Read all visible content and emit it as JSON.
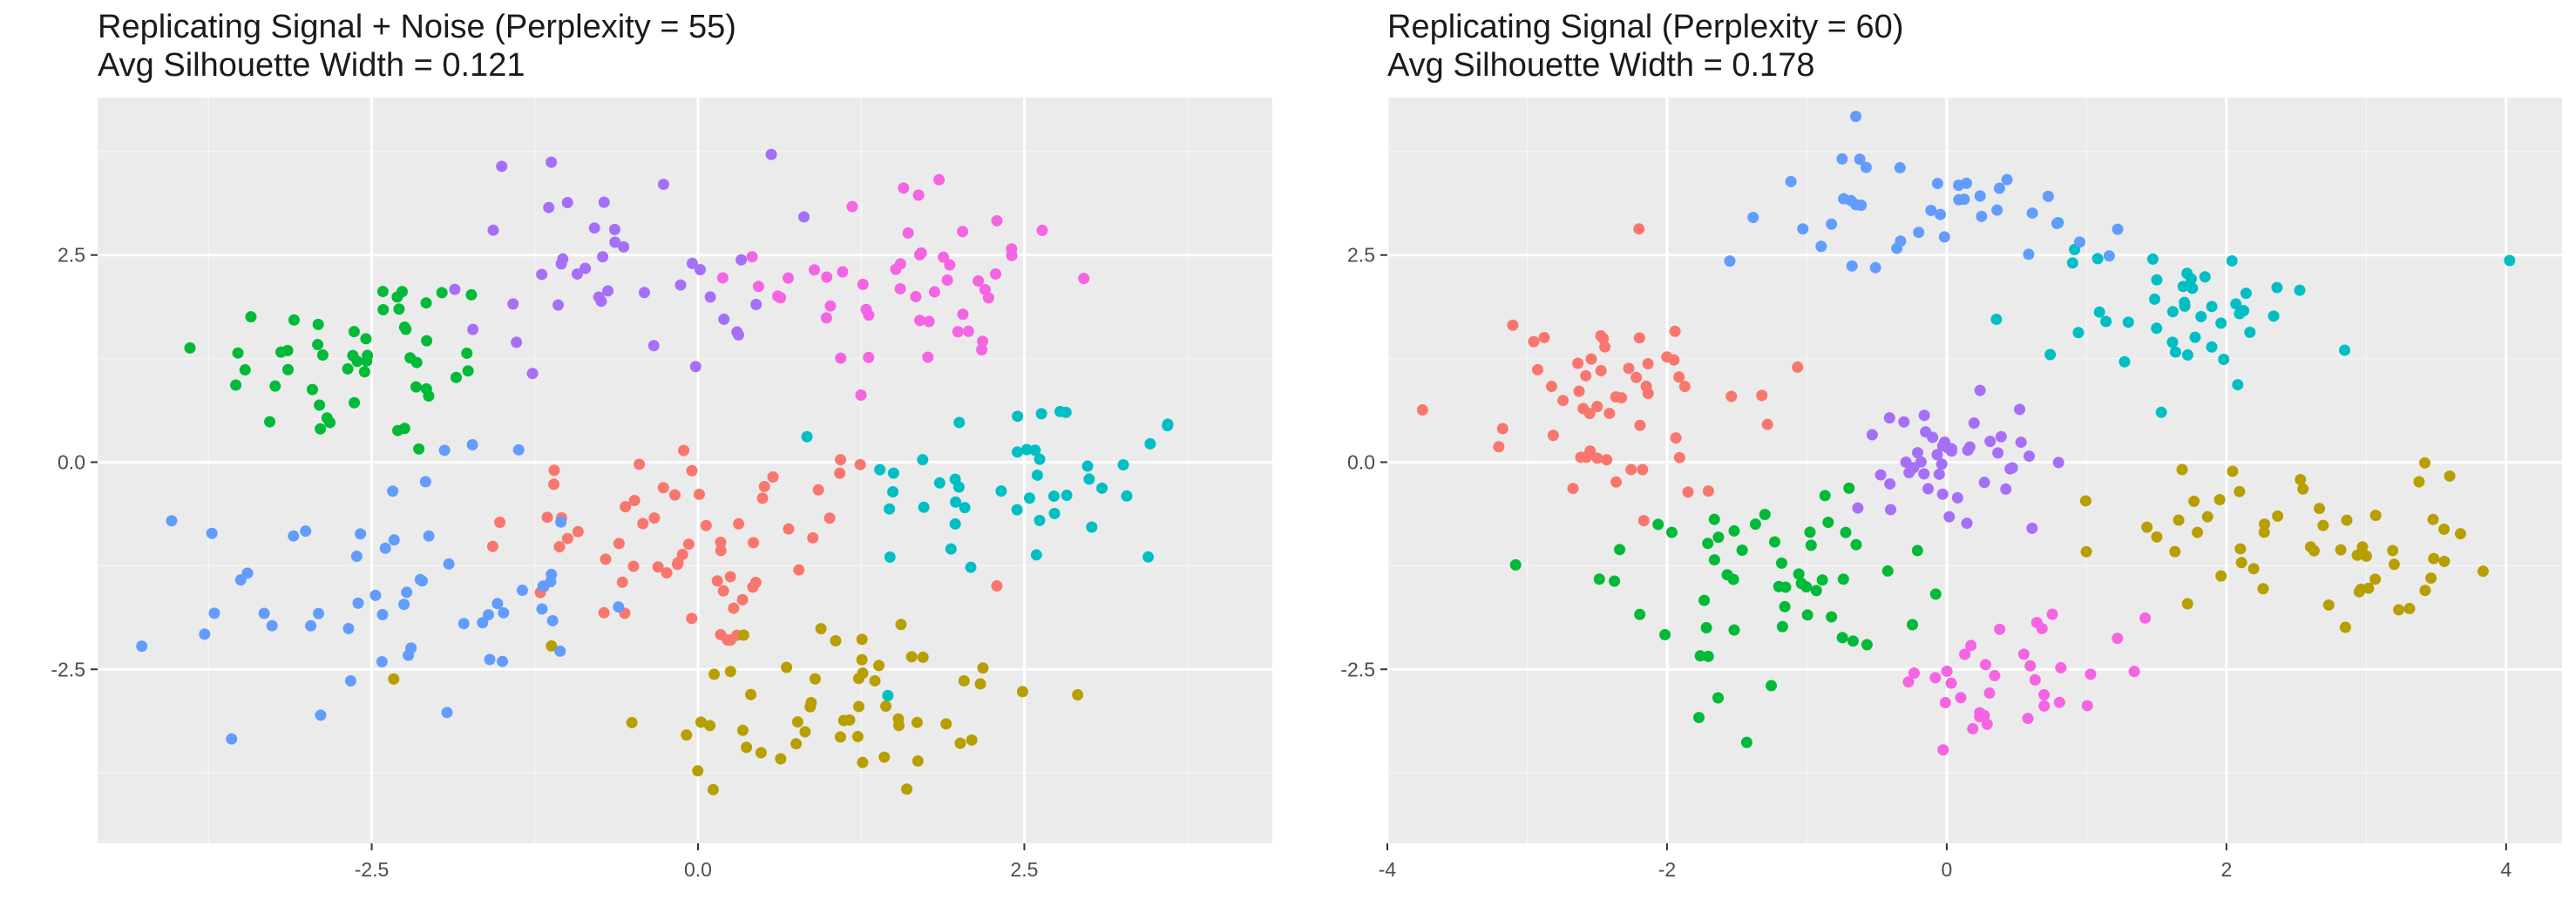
{
  "chart_data": [
    {
      "type": "scatter",
      "title": "Replicating Signal + Noise (Perplexity = 55)",
      "subtitle": "Avg Silhouette Width = 0.121",
      "xlabel": "",
      "ylabel": "",
      "xlim": [
        -4.6,
        4.4
      ],
      "ylim": [
        -4.6,
        4.4
      ],
      "xticks": [
        -2.5,
        0.0,
        2.5
      ],
      "xtick_labels": [
        "-2.5",
        "0.0",
        "2.5"
      ],
      "yticks": [
        -2.5,
        0.0,
        2.5
      ],
      "ytick_labels": [
        "-2.5",
        "0.0",
        "2.5"
      ],
      "grid": true,
      "legend": "none",
      "groups": [
        {
          "color": "#F8766D",
          "center": [
            0.0,
            -1.0
          ],
          "spread": [
            1.1,
            0.9
          ],
          "n": 62
        },
        {
          "color": "#B79F00",
          "center": [
            1.0,
            -2.9
          ],
          "spread": [
            1.1,
            0.8
          ],
          "n": 55
        },
        {
          "color": "#00BA38",
          "center": [
            -2.6,
            1.2
          ],
          "spread": [
            0.8,
            0.8
          ],
          "n": 50
        },
        {
          "color": "#00BFC4",
          "center": [
            2.5,
            -0.3
          ],
          "spread": [
            0.9,
            0.8
          ],
          "n": 45
        },
        {
          "color": "#619CFF",
          "center": [
            -2.4,
            -1.6
          ],
          "spread": [
            1.0,
            1.0
          ],
          "n": 55
        },
        {
          "color": "#F564E3",
          "center": [
            1.7,
            2.2
          ],
          "spread": [
            0.8,
            0.8
          ],
          "n": 50
        },
        {
          "color": "#A66FF7",
          "center": [
            -0.6,
            2.4
          ],
          "spread": [
            0.8,
            0.9
          ],
          "n": 40
        }
      ]
    },
    {
      "type": "scatter",
      "title": "Replicating Signal (Perplexity = 60)",
      "subtitle": "Avg Silhouette Width = 0.178",
      "xlabel": "",
      "ylabel": "",
      "xlim": [
        -4.0,
        4.4
      ],
      "ylim": [
        -4.6,
        4.4
      ],
      "xticks": [
        -4,
        -2,
        0,
        2,
        4
      ],
      "xtick_labels": [
        "-4",
        "-2",
        "0",
        "2",
        "4"
      ],
      "yticks": [
        -2.5,
        0.0,
        2.5
      ],
      "ytick_labels": [
        "-2.5",
        "0.0",
        "2.5"
      ],
      "grid": true,
      "legend": "none",
      "groups": [
        {
          "color": "#F8766D",
          "center": [
            -2.3,
            0.7
          ],
          "spread": [
            0.8,
            0.8
          ],
          "n": 55
        },
        {
          "color": "#B79F00",
          "center": [
            2.5,
            -0.9
          ],
          "spread": [
            0.8,
            0.7
          ],
          "n": 55
        },
        {
          "color": "#00BA38",
          "center": [
            -1.4,
            -1.6
          ],
          "spread": [
            0.7,
            0.8
          ],
          "n": 55
        },
        {
          "color": "#00BFC4",
          "center": [
            1.6,
            1.8
          ],
          "spread": [
            0.8,
            0.6
          ],
          "n": 45
        },
        {
          "color": "#619CFF",
          "center": [
            -0.2,
            3.0
          ],
          "spread": [
            0.8,
            0.5
          ],
          "n": 40
        },
        {
          "color": "#F564E3",
          "center": [
            0.5,
            -2.7
          ],
          "spread": [
            0.6,
            0.6
          ],
          "n": 35
        },
        {
          "color": "#A66FF7",
          "center": [
            -0.1,
            0.0
          ],
          "spread": [
            0.6,
            0.5
          ],
          "n": 45
        }
      ]
    }
  ]
}
